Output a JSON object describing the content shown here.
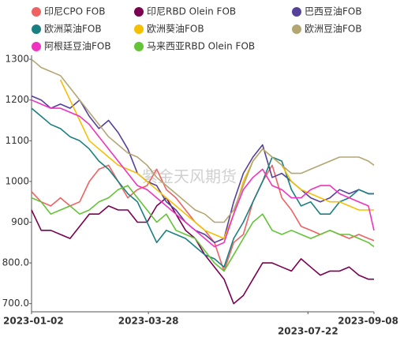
{
  "chart_data": {
    "type": "line",
    "watermark": "紫金天风期货",
    "x": [
      "2023-01-02",
      "2023-01-09",
      "2023-01-16",
      "2023-01-23",
      "2023-01-30",
      "2023-02-06",
      "2023-02-13",
      "2023-02-20",
      "2023-02-27",
      "2023-03-06",
      "2023-03-13",
      "2023-03-20",
      "2023-03-27",
      "2023-04-03",
      "2023-04-10",
      "2023-04-17",
      "2023-04-24",
      "2023-05-01",
      "2023-05-08",
      "2023-05-15",
      "2023-05-22",
      "2023-05-29",
      "2023-06-05",
      "2023-06-12",
      "2023-06-19",
      "2023-06-26",
      "2023-07-03",
      "2023-07-10",
      "2023-07-17",
      "2023-07-24",
      "2023-07-31",
      "2023-08-07",
      "2023-08-14",
      "2023-08-21",
      "2023-08-28",
      "2023-09-04",
      "2023-09-08"
    ],
    "xlim": [
      "2023-01-02",
      "2023-09-08"
    ],
    "xticks": [
      "2023-01-02",
      "2023-03-28",
      "2023-07-22",
      "2023-09-08"
    ],
    "ylim": [
      680,
      1310
    ],
    "yticks": [
      {
        "value": 700,
        "label": "700.0"
      },
      {
        "value": 800,
        "label": "800.0"
      },
      900,
      1000,
      1100,
      1200,
      1300
    ],
    "series": [
      {
        "name": "印尼CPO FOB",
        "color": "#f06262",
        "values": [
          975,
          950,
          940,
          960,
          940,
          950,
          1000,
          1030,
          1040,
          1000,
          960,
          980,
          990,
          1030,
          980,
          960,
          930,
          900,
          880,
          850,
          780,
          850,
          870,
          950,
          1000,
          1040,
          960,
          930,
          890,
          880,
          870,
          880,
          870,
          860,
          870,
          860,
          855
        ]
      },
      {
        "name": "印尼RBD Olein FOB",
        "color": "#7a0050",
        "values": [
          930,
          880,
          880,
          870,
          860,
          890,
          920,
          920,
          940,
          930,
          930,
          900,
          900,
          940,
          960,
          920,
          880,
          860,
          820,
          790,
          760,
          700,
          720,
          760,
          800,
          800,
          790,
          780,
          810,
          790,
          770,
          780,
          780,
          790,
          770,
          760,
          760
        ]
      },
      {
        "name": "巴西豆油FOB",
        "color": "#55409a",
        "values": [
          1210,
          1200,
          1180,
          1190,
          1180,
          1200,
          1160,
          1130,
          1150,
          1120,
          1080,
          1020,
          1000,
          990,
          950,
          930,
          900,
          880,
          870,
          850,
          860,
          950,
          1020,
          1060,
          1090,
          1010,
          1020,
          1000,
          980,
          960,
          950,
          960,
          980,
          970,
          980,
          970,
          970
        ]
      },
      {
        "name": "欧洲菜油FOB",
        "color": "#1a7f80",
        "values": [
          1180,
          1160,
          1140,
          1130,
          1110,
          1100,
          1080,
          1050,
          1030,
          1000,
          970,
          950,
          900,
          850,
          880,
          870,
          860,
          840,
          820,
          810,
          790,
          860,
          900,
          950,
          1000,
          1060,
          1050,
          980,
          940,
          950,
          920,
          920,
          950,
          960,
          980,
          970,
          970
        ]
      },
      {
        "name": "欧洲葵油FOB",
        "color": "#f5c000",
        "values": [
          null,
          null,
          null,
          1250,
          1200,
          1150,
          1100,
          1080,
          1060,
          1040,
          1030,
          1020,
          1000,
          980,
          960,
          940,
          920,
          900,
          880,
          870,
          860,
          920,
          1000,
          1050,
          1080,
          1060,
          1040,
          1000,
          980,
          970,
          960,
          950,
          950,
          940,
          930,
          930,
          930
        ]
      },
      {
        "name": "欧洲豆油FOB",
        "color": "#b3a672",
        "values": [
          1300,
          1280,
          1270,
          1260,
          1230,
          1200,
          1170,
          1140,
          1110,
          1090,
          1070,
          1060,
          1040,
          1010,
          990,
          970,
          950,
          930,
          920,
          900,
          900,
          930,
          990,
          1050,
          1080,
          1060,
          1040,
          1020,
          1020,
          1030,
          1040,
          1050,
          1060,
          1060,
          1060,
          1050,
          1040
        ]
      },
      {
        "name": "阿根廷豆油FOB",
        "color": "#f032c0",
        "values": [
          1200,
          1190,
          1180,
          1180,
          1170,
          1160,
          1140,
          1110,
          1080,
          1050,
          1020,
          990,
          980,
          960,
          940,
          920,
          900,
          880,
          860,
          840,
          850,
          920,
          980,
          1010,
          1030,
          990,
          980,
          960,
          960,
          980,
          990,
          990,
          970,
          960,
          950,
          940,
          880
        ]
      },
      {
        "name": "马来西亚RBD Olein FOB",
        "color": "#62c436",
        "values": [
          960,
          950,
          920,
          930,
          940,
          920,
          930,
          950,
          960,
          980,
          990,
          960,
          930,
          900,
          920,
          880,
          870,
          860,
          830,
          800,
          780,
          820,
          860,
          900,
          920,
          880,
          870,
          880,
          870,
          860,
          870,
          880,
          870,
          870,
          860,
          850,
          840
        ]
      }
    ]
  }
}
